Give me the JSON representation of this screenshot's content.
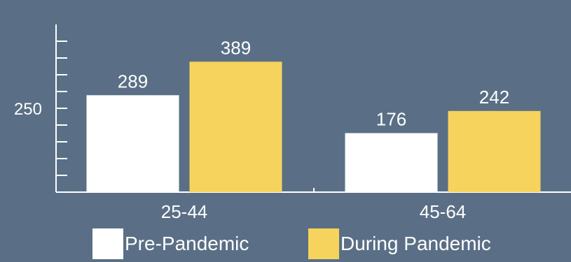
{
  "chart_data": {
    "type": "bar",
    "categories": [
      "25-44",
      "45-64"
    ],
    "series": [
      {
        "name": "Pre-Pandemic",
        "values": [
          289,
          176
        ],
        "color": "#ffffff"
      },
      {
        "name": "During Pandemic",
        "values": [
          389,
          242
        ],
        "color": "#f5d35c"
      }
    ],
    "ylim": [
      0,
      500
    ],
    "yticks": [
      250
    ],
    "grid": false,
    "legend_position": "bottom"
  },
  "colors": {
    "background": "#5a6f86",
    "pre_pandemic": "#ffffff",
    "during_pandemic": "#f5d35c",
    "axis": "#ffffff"
  }
}
